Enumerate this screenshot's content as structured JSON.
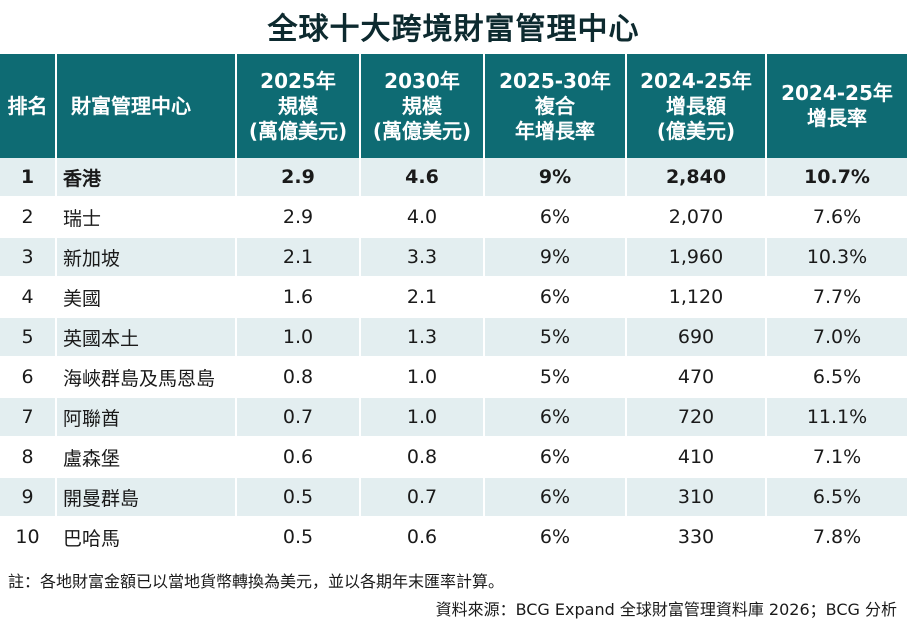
{
  "title": "全球十大跨境財富管理中心",
  "header": {
    "rank": [
      "排名"
    ],
    "center": [
      "財富管理中心"
    ],
    "size_2025": [
      "2025年",
      "規模",
      "(萬億美元)"
    ],
    "size_2030": [
      "2030年",
      "規模",
      "(萬億美元)"
    ],
    "cagr": [
      "2025-30年",
      "複合",
      "年增長率"
    ],
    "growth_amount": [
      "2024-25年",
      "增長額",
      "(億美元)"
    ],
    "growth_rate": [
      "2024-25年",
      "增長率"
    ]
  },
  "rows": [
    {
      "rank": "1",
      "name": "香港",
      "size_2025": "2.9",
      "size_2030": "4.6",
      "cagr": "9%",
      "growth_amount": "2,840",
      "growth_rate": "10.7%"
    },
    {
      "rank": "2",
      "name": "瑞士",
      "size_2025": "2.9",
      "size_2030": "4.0",
      "cagr": "6%",
      "growth_amount": "2,070",
      "growth_rate": "7.6%"
    },
    {
      "rank": "3",
      "name": "新加坡",
      "size_2025": "2.1",
      "size_2030": "3.3",
      "cagr": "9%",
      "growth_amount": "1,960",
      "growth_rate": "10.3%"
    },
    {
      "rank": "4",
      "name": "美國",
      "size_2025": "1.6",
      "size_2030": "2.1",
      "cagr": "6%",
      "growth_amount": "1,120",
      "growth_rate": "7.7%"
    },
    {
      "rank": "5",
      "name": "英國本土",
      "size_2025": "1.0",
      "size_2030": "1.3",
      "cagr": "5%",
      "growth_amount": "690",
      "growth_rate": "7.0%"
    },
    {
      "rank": "6",
      "name": "海峽群島及馬恩島",
      "size_2025": "0.8",
      "size_2030": "1.0",
      "cagr": "5%",
      "growth_amount": "470",
      "growth_rate": "6.5%"
    },
    {
      "rank": "7",
      "name": "阿聯酋",
      "size_2025": "0.7",
      "size_2030": "1.0",
      "cagr": "6%",
      "growth_amount": "720",
      "growth_rate": "11.1%"
    },
    {
      "rank": "8",
      "name": "盧森堡",
      "size_2025": "0.6",
      "size_2030": "0.8",
      "cagr": "6%",
      "growth_amount": "410",
      "growth_rate": "7.1%"
    },
    {
      "rank": "9",
      "name": "開曼群島",
      "size_2025": "0.5",
      "size_2030": "0.7",
      "cagr": "6%",
      "growth_amount": "310",
      "growth_rate": "6.5%"
    },
    {
      "rank": "10",
      "name": "巴哈馬",
      "size_2025": "0.5",
      "size_2030": "0.6",
      "cagr": "6%",
      "growth_amount": "330",
      "growth_rate": "7.8%"
    }
  ],
  "note": "註：各地財富金額已以當地貨幣轉換為美元，並以各期年末匯率計算。",
  "source": "資料來源：BCG Expand 全球財富管理資料庫 2026；BCG 分析",
  "colors": {
    "header_bg": "#0e6b73",
    "stripe": "#e3eef0",
    "title": "#0d2a2f"
  },
  "chart_data": {
    "type": "table",
    "title": "全球十大跨境財富管理中心",
    "columns": [
      "排名",
      "財富管理中心",
      "2025年規模(萬億美元)",
      "2030年規模(萬億美元)",
      "2025-30年複合年增長率",
      "2024-25年增長額(億美元)",
      "2024-25年增長率"
    ],
    "rows": [
      [
        1,
        "香港",
        2.9,
        4.6,
        "9%",
        2840,
        "10.7%"
      ],
      [
        2,
        "瑞士",
        2.9,
        4.0,
        "6%",
        2070,
        "7.6%"
      ],
      [
        3,
        "新加坡",
        2.1,
        3.3,
        "9%",
        1960,
        "10.3%"
      ],
      [
        4,
        "美國",
        1.6,
        2.1,
        "6%",
        1120,
        "7.7%"
      ],
      [
        5,
        "英國本土",
        1.0,
        1.3,
        "5%",
        690,
        "7.0%"
      ],
      [
        6,
        "海峽群島及馬恩島",
        0.8,
        1.0,
        "5%",
        470,
        "6.5%"
      ],
      [
        7,
        "阿聯酋",
        0.7,
        1.0,
        "6%",
        720,
        "11.1%"
      ],
      [
        8,
        "盧森堡",
        0.6,
        0.8,
        "6%",
        410,
        "7.1%"
      ],
      [
        9,
        "開曼群島",
        0.5,
        0.7,
        "6%",
        310,
        "6.5%"
      ],
      [
        10,
        "巴哈馬",
        0.5,
        0.6,
        "6%",
        330,
        "7.8%"
      ]
    ]
  }
}
